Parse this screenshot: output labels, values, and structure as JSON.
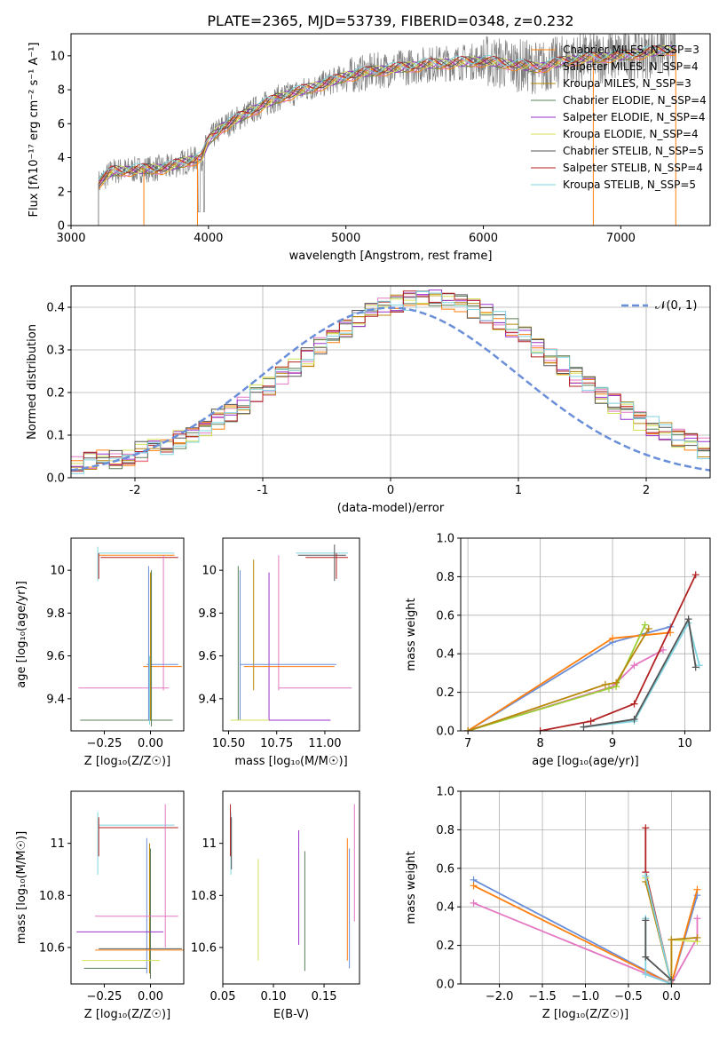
{
  "title": "PLATE=2365, MJD=53739, FIBERID=0348, z=0.232",
  "colors": {
    "c_miles": "#ff7f0e",
    "s_miles": "#e377c2",
    "k_miles": "#b8860b",
    "c_elodie": "#5a7d5a",
    "s_elodie": "#9932cc",
    "k_elodie": "#d4e157",
    "c_stelib": "#555555",
    "s_stelib": "#b22222",
    "k_stelib": "#7fd4e0",
    "blue": "#6a8fd8",
    "green_line": "#9acd32",
    "grid": "#b0b0b0"
  },
  "chart_data": [
    {
      "id": "spectrum",
      "type": "line",
      "xlabel": "wavelength [Angstrom, rest frame]",
      "ylabel": "Flux [fλ10⁻¹⁷ erg cm⁻² s⁻¹ A⁻¹]",
      "xlim": [
        3000,
        7650
      ],
      "ylim": [
        0,
        11.3
      ],
      "xticks": [
        3000,
        4000,
        5000,
        6000,
        7000
      ],
      "yticks": [
        0,
        2,
        4,
        6,
        8,
        10
      ],
      "legend_position": "top-right",
      "legend": [
        "Chabrier MILES, N_SSP=3",
        "Salpeter MILES, N_SSP=4",
        "Kroupa MILES, N_SSP=3",
        "Chabrier ELODIE, N_SSP=4",
        "Salpeter ELODIE, N_SSP=4",
        "Kroupa ELODIE, N_SSP=4",
        "Chabrier STELIB, N_SSP=5",
        "Salpeter STELIB, N_SSP=4",
        "Kroupa STELIB, N_SSP=5"
      ],
      "legend_color_keys": [
        "c_miles",
        "s_miles",
        "k_miles",
        "c_elodie",
        "s_elodie",
        "k_elodie",
        "c_stelib",
        "s_stelib",
        "k_stelib"
      ],
      "continuum": {
        "x": [
          3200,
          3300,
          3500,
          3700,
          3800,
          3950,
          4000,
          4100,
          4300,
          4500,
          4700,
          4900,
          5000,
          5200,
          5400,
          5600,
          5800,
          6000,
          6200,
          6400,
          6600,
          6800,
          7000,
          7200,
          7400
        ],
        "y": [
          2.5,
          3.2,
          3.3,
          3.4,
          3.7,
          4.0,
          5.0,
          5.8,
          6.7,
          7.5,
          8.0,
          8.5,
          8.8,
          9.1,
          9.3,
          9.5,
          9.6,
          9.7,
          9.5,
          9.3,
          9.7,
          9.9,
          10.0,
          10.2,
          10.4
        ]
      },
      "data_range": [
        3200,
        7400
      ]
    },
    {
      "id": "residuals",
      "type": "histogram",
      "xlabel": "(data-model)/error",
      "ylabel": "Normed distribution",
      "xlim": [
        -2.5,
        2.5
      ],
      "ylim": [
        0,
        0.45
      ],
      "xticks": [
        -2,
        -1,
        0,
        1,
        2
      ],
      "yticks": [
        0.0,
        0.1,
        0.2,
        0.3,
        0.4
      ],
      "legend_position": "top-right",
      "gauss_label": "𝒩(0, 1)",
      "bin_width": 0.1
    },
    {
      "id": "age_vs_Z",
      "type": "errorbar",
      "xlabel": "Z [log₁₀(Z/Z☉)]",
      "ylabel": "age  [log₁₀(age/yr)]",
      "xlim": [
        -0.43,
        0.18
      ],
      "ylim": [
        9.25,
        10.15
      ],
      "xticks": [
        -0.25,
        0.0
      ],
      "xtick_labels": [
        "−0.25",
        "0.00"
      ],
      "yticks": [
        9.4,
        9.6,
        9.8,
        10.0
      ],
      "segments": [
        {
          "c": "k_stelib",
          "x1": -0.28,
          "x2": 0.13,
          "y": 10.08
        },
        {
          "c": "c_miles",
          "x1": -0.28,
          "x2": 0.13,
          "y": 10.07
        },
        {
          "c": "s_stelib",
          "x1": -0.27,
          "x2": 0.15,
          "y": 10.06
        },
        {
          "c": "k_stelib",
          "vx": -0.285,
          "y1": 9.95,
          "y2": 10.11
        },
        {
          "c": "s_stelib",
          "vx": -0.28,
          "y1": 9.96,
          "y2": 10.08
        },
        {
          "c": "blue",
          "x1": -0.02,
          "x2": 0.15,
          "y": 9.56
        },
        {
          "c": "c_miles",
          "x1": -0.04,
          "x2": 0.17,
          "y": 9.55
        },
        {
          "c": "s_miles",
          "x1": -0.39,
          "x2": 0.1,
          "y": 9.45
        },
        {
          "c": "k_elodie",
          "x1": -0.38,
          "x2": 0.11,
          "y": 9.3
        },
        {
          "c": "c_elodie",
          "x1": -0.38,
          "x2": 0.12,
          "y": 9.3
        },
        {
          "c": "blue",
          "vx": -0.01,
          "y1": 9.3,
          "y2": 10.02
        },
        {
          "c": "k_miles",
          "vx": 0.0,
          "y1": 9.3,
          "y2": 9.99
        },
        {
          "c": "c_elodie",
          "vx": 0.005,
          "y1": 9.27,
          "y2": 10.0
        },
        {
          "c": "s_miles",
          "vx": 0.07,
          "y1": 9.44,
          "y2": 10.07
        },
        {
          "c": "k_stelib",
          "vx": -0.005,
          "y1": 9.28,
          "y2": 9.6
        }
      ]
    },
    {
      "id": "age_vs_mass",
      "type": "errorbar",
      "xlabel": "mass [log₁₀(M/M☉)]",
      "ylabel": "",
      "xlim": [
        10.47,
        11.18
      ],
      "ylim": [
        9.25,
        10.15
      ],
      "xticks": [
        10.5,
        10.75,
        11.0
      ],
      "xtick_labels": [
        "10.50",
        "10.75",
        "11.00"
      ],
      "yticks": [
        9.4,
        9.6,
        9.8,
        10.0
      ],
      "segments": [
        {
          "c": "k_stelib",
          "x1": 10.85,
          "x2": 11.12,
          "y": 10.08
        },
        {
          "c": "c_stelib",
          "x1": 10.86,
          "x2": 11.11,
          "y": 10.07
        },
        {
          "c": "s_stelib",
          "x1": 10.9,
          "x2": 11.12,
          "y": 10.06
        },
        {
          "c": "c_stelib",
          "vx": 11.05,
          "y1": 9.95,
          "y2": 10.12
        },
        {
          "c": "s_stelib",
          "vx": 11.06,
          "y1": 9.96,
          "y2": 10.08
        },
        {
          "c": "c_elodie",
          "vx": 10.55,
          "y1": 9.3,
          "y2": 10.02
        },
        {
          "c": "blue",
          "vx": 10.56,
          "y1": 9.3,
          "y2": 10.0
        },
        {
          "c": "k_miles",
          "vx": 10.63,
          "y1": 9.44,
          "y2": 10.05
        },
        {
          "c": "s_elodie",
          "vx": 10.71,
          "y1": 9.3,
          "y2": 9.99
        },
        {
          "c": "s_miles",
          "vx": 10.76,
          "y1": 9.44,
          "y2": 10.07
        },
        {
          "c": "blue",
          "x1": 10.56,
          "x2": 11.06,
          "y": 9.56
        },
        {
          "c": "c_miles",
          "x1": 10.58,
          "x2": 11.05,
          "y": 9.55
        },
        {
          "c": "s_miles",
          "x1": 10.76,
          "x2": 11.14,
          "y": 9.45
        },
        {
          "c": "k_elodie",
          "x1": 10.51,
          "x2": 10.72,
          "y": 9.3
        },
        {
          "c": "s_elodie",
          "x1": 10.71,
          "x2": 11.03,
          "y": 9.3
        }
      ]
    },
    {
      "id": "weight_vs_age",
      "type": "line",
      "xlabel": "age  [log₁₀(age/yr)]",
      "ylabel": "mass weight",
      "xlim": [
        6.9,
        10.35
      ],
      "ylim": [
        0,
        1.0
      ],
      "xticks": [
        7,
        8,
        9,
        10
      ],
      "yticks": [
        0.0,
        0.2,
        0.4,
        0.6,
        0.8,
        1.0
      ],
      "series": [
        {
          "c": "blue",
          "x": [
            7.0,
            9.0,
            9.8
          ],
          "y": [
            0.0,
            0.46,
            0.54
          ]
        },
        {
          "c": "c_miles",
          "x": [
            7.0,
            9.0,
            9.8
          ],
          "y": [
            0.0,
            0.48,
            0.51
          ]
        },
        {
          "c": "s_miles",
          "x": [
            7.0,
            9.0,
            9.3,
            9.7
          ],
          "y": [
            0.0,
            0.23,
            0.34,
            0.42
          ]
        },
        {
          "c": "green_line",
          "x": [
            7.0,
            8.95,
            9.05,
            9.45
          ],
          "y": [
            0.0,
            0.22,
            0.23,
            0.55
          ]
        },
        {
          "c": "k_miles",
          "x": [
            7.0,
            8.9,
            9.05,
            9.5
          ],
          "y": [
            0.0,
            0.24,
            0.25,
            0.53
          ]
        },
        {
          "c": "s_stelib",
          "x": [
            8.0,
            8.7,
            9.3,
            10.15
          ],
          "y": [
            0.0,
            0.05,
            0.14,
            0.81
          ]
        },
        {
          "c": "k_stelib",
          "x": [
            8.6,
            9.3,
            10.05,
            10.2
          ],
          "y": [
            0.02,
            0.05,
            0.56,
            0.34
          ]
        },
        {
          "c": "c_stelib",
          "x": [
            8.6,
            9.3,
            10.05,
            10.15
          ],
          "y": [
            0.02,
            0.06,
            0.58,
            0.33
          ]
        }
      ]
    },
    {
      "id": "mass_vs_Z",
      "type": "errorbar",
      "xlabel": "Z [log₁₀(Z/Z☉)]",
      "ylabel": "mass [log₁₀(M/M☉)]",
      "xlim": [
        -0.43,
        0.18
      ],
      "ylim": [
        10.46,
        11.2
      ],
      "xticks": [
        -0.25,
        0.0
      ],
      "xtick_labels": [
        "−0.25",
        "0.00"
      ],
      "yticks": [
        10.6,
        10.8,
        11.0
      ],
      "segments": [
        {
          "c": "s_stelib",
          "x1": -0.28,
          "x2": 0.15,
          "y": 11.06
        },
        {
          "c": "k_stelib",
          "x1": -0.28,
          "x2": 0.13,
          "y": 11.07
        },
        {
          "c": "k_stelib",
          "vx": -0.285,
          "y1": 10.88,
          "y2": 11.12
        },
        {
          "c": "s_stelib",
          "vx": -0.28,
          "y1": 10.95,
          "y2": 11.1
        },
        {
          "c": "blue",
          "vx": -0.02,
          "y1": 10.5,
          "y2": 11.02
        },
        {
          "c": "k_miles",
          "vx": -0.005,
          "y1": 10.5,
          "y2": 11.0
        },
        {
          "c": "c_elodie",
          "vx": 0.0,
          "y1": 10.48,
          "y2": 10.98
        },
        {
          "c": "s_miles",
          "vx": 0.08,
          "y1": 10.6,
          "y2": 11.15
        },
        {
          "c": "s_miles",
          "x1": -0.3,
          "x2": 0.15,
          "y": 10.72
        },
        {
          "c": "s_elodie",
          "x1": -0.4,
          "x2": 0.07,
          "y": 10.66
        },
        {
          "c": "c_stelib",
          "x1": -0.28,
          "x2": 0.17,
          "y": 10.595
        },
        {
          "c": "c_miles",
          "x1": -0.3,
          "x2": 0.18,
          "y": 10.59
        },
        {
          "c": "k_elodie",
          "x1": -0.37,
          "x2": 0.05,
          "y": 10.55
        },
        {
          "c": "c_elodie",
          "x1": -0.36,
          "x2": -0.02,
          "y": 10.52
        }
      ]
    },
    {
      "id": "mass_vs_ebv",
      "type": "errorbar",
      "xlabel": "E(B-V)",
      "ylabel": "",
      "xlim": [
        0.05,
        0.185
      ],
      "ylim": [
        10.46,
        11.2
      ],
      "xticks": [
        0.05,
        0.1,
        0.15
      ],
      "xtick_labels": [
        "0.05",
        "0.10",
        "0.15"
      ],
      "yticks": [
        10.6,
        10.8,
        11.0
      ],
      "segments": [
        {
          "c": "k_stelib",
          "vx": 0.058,
          "y1": 10.88,
          "y2": 11.12
        },
        {
          "c": "s_stelib",
          "vx": 0.0575,
          "y1": 10.95,
          "y2": 11.15
        },
        {
          "c": "c_stelib",
          "vx": 0.0585,
          "y1": 10.9,
          "y2": 11.1
        },
        {
          "c": "k_elodie",
          "vx": 0.085,
          "y1": 10.55,
          "y2": 10.94
        },
        {
          "c": "s_elodie",
          "vx": 0.125,
          "y1": 10.61,
          "y2": 11.05
        },
        {
          "c": "c_elodie",
          "vx": 0.131,
          "y1": 10.51,
          "y2": 10.97
        },
        {
          "c": "c_miles",
          "vx": 0.173,
          "y1": 10.55,
          "y2": 11.02
        },
        {
          "c": "blue",
          "vx": 0.175,
          "y1": 10.52,
          "y2": 10.98
        },
        {
          "c": "s_miles",
          "vx": 0.18,
          "y1": 10.7,
          "y2": 11.15
        }
      ]
    },
    {
      "id": "weight_vs_Z",
      "type": "line",
      "xlabel": "Z [log₁₀(Z/Z☉)]",
      "ylabel": "mass weight",
      "xlim": [
        -2.45,
        0.45
      ],
      "ylim": [
        0,
        1.0
      ],
      "xticks": [
        -2.0,
        -1.5,
        -1.0,
        -0.5,
        0.0
      ],
      "xtick_labels": [
        "−2.0",
        "−1.5",
        "−1.0",
        "−0.5",
        "0.0"
      ],
      "yticks": [
        0.0,
        0.2,
        0.4,
        0.6,
        0.8,
        1.0
      ],
      "series": [
        {
          "c": "blue",
          "x": [
            -2.3,
            0.0,
            0.3
          ],
          "y": [
            0.54,
            0.0,
            0.46
          ]
        },
        {
          "c": "c_miles",
          "x": [
            -2.3,
            0.0,
            0.3
          ],
          "y": [
            0.51,
            0.0,
            0.49
          ]
        },
        {
          "c": "s_miles",
          "x": [
            -2.3,
            0.0,
            0.3,
            0.3
          ],
          "y": [
            0.42,
            0.0,
            0.24,
            0.34
          ]
        },
        {
          "c": "s_stelib",
          "x": [
            -0.3,
            -0.3,
            0.0
          ],
          "y": [
            0.81,
            0.58,
            0.0
          ]
        },
        {
          "c": "k_elodie",
          "x": [
            -0.3,
            0.0,
            0.0,
            0.3
          ],
          "y": [
            0.55,
            0.0,
            0.23,
            0.22
          ]
        },
        {
          "c": "k_miles",
          "x": [
            -0.3,
            0.0,
            0.0,
            0.3
          ],
          "y": [
            0.53,
            0.0,
            0.23,
            0.24
          ]
        },
        {
          "c": "k_stelib",
          "x": [
            -0.3,
            -0.3,
            0.0,
            -0.3
          ],
          "y": [
            0.34,
            0.05,
            0.0,
            0.56
          ]
        },
        {
          "c": "c_stelib",
          "x": [
            -0.3,
            -0.3,
            0.0
          ],
          "y": [
            0.33,
            0.14,
            0.02
          ]
        }
      ]
    }
  ]
}
